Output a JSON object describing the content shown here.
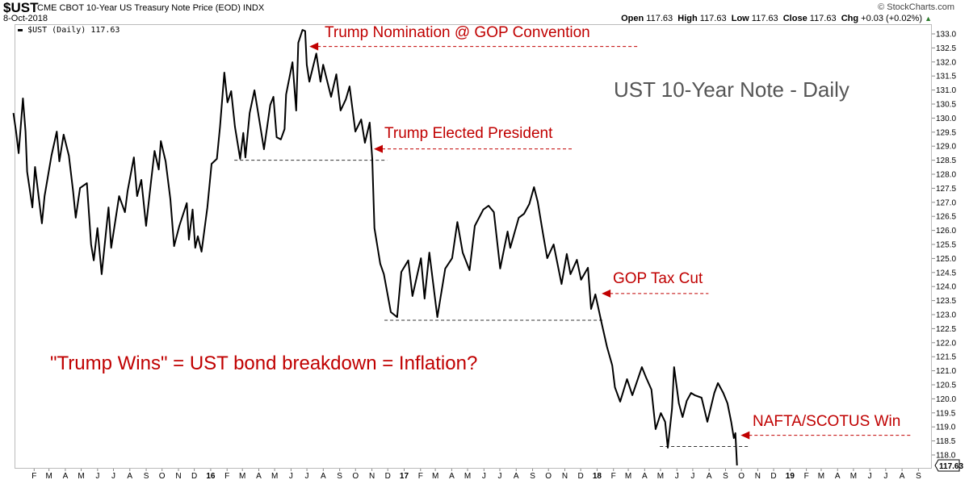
{
  "header": {
    "symbol": "$UST",
    "name": "CME CBOT 10-Year US Treasury Note Price (EOD)  INDX",
    "date": "8-Oct-2018",
    "brand": "© StockCharts.com",
    "open_label": "Open",
    "open": "117.63",
    "high_label": "High",
    "high": "117.63",
    "low_label": "Low",
    "low": "117.63",
    "close_label": "Close",
    "close": "117.63",
    "chg_label": "Chg",
    "chg": "+0.03 (+0.02%)",
    "chg_icon": "triangle-up-icon"
  },
  "legend": "$UST (Daily) 117.63",
  "last_price_tag": "117.63",
  "colors": {
    "line": "#000000",
    "annotation": "#c00000",
    "title": "#555555",
    "grid": "#bbbbbb"
  },
  "chart_data": {
    "type": "line",
    "title": "UST 10-Year Note - Daily",
    "xlim": [
      "2015-01-01",
      "2019-10-10"
    ],
    "ylim": [
      117.5,
      133.4
    ],
    "yticks": [
      "133.0",
      "132.5",
      "132.0",
      "131.5",
      "131.0",
      "130.5",
      "130.0",
      "129.5",
      "129.0",
      "128.5",
      "128.0",
      "127.5",
      "127.0",
      "126.5",
      "126.0",
      "125.5",
      "125.0",
      "124.5",
      "124.0",
      "123.5",
      "123.0",
      "122.5",
      "122.0",
      "121.5",
      "121.0",
      "120.5",
      "120.0",
      "119.5",
      "119.0",
      "118.5",
      "118.0"
    ],
    "xticks": [
      "F",
      "M",
      "A",
      "M",
      "J",
      "J",
      "A",
      "S",
      "O",
      "N",
      "D",
      "16",
      "F",
      "M",
      "A",
      "M",
      "J",
      "J",
      "A",
      "S",
      "O",
      "N",
      "D",
      "17",
      "F",
      "M",
      "A",
      "M",
      "J",
      "J",
      "A",
      "S",
      "O",
      "N",
      "D",
      "18",
      "F",
      "M",
      "A",
      "M",
      "J",
      "J",
      "A",
      "S",
      "O",
      "N",
      "D",
      "19",
      "F",
      "M",
      "A",
      "M",
      "J",
      "J",
      "A",
      "S"
    ],
    "grid": false,
    "series": [
      {
        "name": "$UST (Daily)",
        "points": [
          [
            "2015-01-08",
            130.18
          ],
          [
            "2015-01-13",
            129.52
          ],
          [
            "2015-01-18",
            128.75
          ],
          [
            "2015-01-26",
            130.7
          ],
          [
            "2015-01-31",
            129.52
          ],
          [
            "2015-02-03",
            128.09
          ],
          [
            "2015-02-13",
            126.82
          ],
          [
            "2015-02-18",
            128.26
          ],
          [
            "2015-03-03",
            126.25
          ],
          [
            "2015-03-08",
            127.22
          ],
          [
            "2015-03-21",
            128.66
          ],
          [
            "2015-03-31",
            129.52
          ],
          [
            "2015-04-05",
            128.46
          ],
          [
            "2015-04-13",
            129.41
          ],
          [
            "2015-04-23",
            128.66
          ],
          [
            "2015-05-01",
            127.4
          ],
          [
            "2015-05-06",
            126.45
          ],
          [
            "2015-05-14",
            127.51
          ],
          [
            "2015-05-27",
            127.68
          ],
          [
            "2015-06-04",
            125.5
          ],
          [
            "2015-06-09",
            124.93
          ],
          [
            "2015-06-16",
            126.08
          ],
          [
            "2015-06-24",
            124.44
          ],
          [
            "2015-07-07",
            126.82
          ],
          [
            "2015-07-12",
            125.38
          ],
          [
            "2015-07-27",
            127.22
          ],
          [
            "2015-08-07",
            126.65
          ],
          [
            "2015-08-12",
            127.4
          ],
          [
            "2015-08-24",
            128.6
          ],
          [
            "2015-08-30",
            127.22
          ],
          [
            "2015-09-07",
            127.8
          ],
          [
            "2015-09-16",
            126.16
          ],
          [
            "2015-09-25",
            127.68
          ],
          [
            "2015-10-02",
            128.83
          ],
          [
            "2015-10-10",
            128.17
          ],
          [
            "2015-10-14",
            129.18
          ],
          [
            "2015-10-23",
            128.46
          ],
          [
            "2015-11-01",
            127.11
          ],
          [
            "2015-11-08",
            125.44
          ],
          [
            "2015-11-18",
            126.16
          ],
          [
            "2015-12-02",
            126.97
          ],
          [
            "2015-12-06",
            125.67
          ],
          [
            "2015-12-13",
            126.74
          ],
          [
            "2015-12-18",
            125.38
          ],
          [
            "2015-12-23",
            125.79
          ],
          [
            "2015-12-30",
            125.24
          ],
          [
            "2016-01-10",
            126.82
          ],
          [
            "2016-01-18",
            128.37
          ],
          [
            "2016-01-28",
            128.55
          ],
          [
            "2016-02-03",
            129.7
          ],
          [
            "2016-02-11",
            131.62
          ],
          [
            "2016-02-17",
            130.56
          ],
          [
            "2016-02-24",
            130.96
          ],
          [
            "2016-03-02",
            129.7
          ],
          [
            "2016-03-12",
            128.55
          ],
          [
            "2016-03-18",
            129.47
          ],
          [
            "2016-03-22",
            128.6
          ],
          [
            "2016-03-30",
            130.18
          ],
          [
            "2016-04-08",
            130.99
          ],
          [
            "2016-04-15",
            130.18
          ],
          [
            "2016-04-26",
            128.89
          ],
          [
            "2016-05-08",
            130.47
          ],
          [
            "2016-05-14",
            130.76
          ],
          [
            "2016-05-20",
            129.32
          ],
          [
            "2016-05-28",
            129.24
          ],
          [
            "2016-06-04",
            129.61
          ],
          [
            "2016-06-07",
            130.84
          ],
          [
            "2016-06-19",
            131.99
          ],
          [
            "2016-06-26",
            130.27
          ],
          [
            "2016-06-30",
            132.68
          ],
          [
            "2016-07-08",
            133.14
          ],
          [
            "2016-07-13",
            133.1
          ],
          [
            "2016-07-16",
            131.9
          ],
          [
            "2016-07-21",
            131.3
          ],
          [
            "2016-08-03",
            132.3
          ],
          [
            "2016-08-11",
            131.3
          ],
          [
            "2016-08-16",
            131.9
          ],
          [
            "2016-08-31",
            130.76
          ],
          [
            "2016-09-10",
            131.56
          ],
          [
            "2016-09-18",
            130.27
          ],
          [
            "2016-09-28",
            130.67
          ],
          [
            "2016-10-05",
            131.13
          ],
          [
            "2016-10-16",
            129.52
          ],
          [
            "2016-10-27",
            129.95
          ],
          [
            "2016-11-03",
            129.12
          ],
          [
            "2016-11-12",
            129.84
          ],
          [
            "2016-11-17",
            128.55
          ],
          [
            "2016-11-21",
            126.08
          ],
          [
            "2016-12-02",
            124.81
          ],
          [
            "2016-12-09",
            124.44
          ],
          [
            "2016-12-22",
            123.09
          ],
          [
            "2017-01-03",
            122.91
          ],
          [
            "2017-01-11",
            124.52
          ],
          [
            "2017-01-24",
            124.93
          ],
          [
            "2017-02-01",
            123.66
          ],
          [
            "2017-02-17",
            125.01
          ],
          [
            "2017-02-24",
            123.57
          ],
          [
            "2017-03-05",
            125.21
          ],
          [
            "2017-03-20",
            122.91
          ],
          [
            "2017-04-04",
            124.64
          ],
          [
            "2017-04-17",
            125.01
          ],
          [
            "2017-04-27",
            126.3
          ],
          [
            "2017-05-07",
            125.21
          ],
          [
            "2017-05-20",
            124.58
          ],
          [
            "2017-05-30",
            126.16
          ],
          [
            "2017-06-15",
            126.74
          ],
          [
            "2017-06-25",
            126.88
          ],
          [
            "2017-07-05",
            126.65
          ],
          [
            "2017-07-17",
            124.64
          ],
          [
            "2017-07-31",
            125.96
          ],
          [
            "2017-08-05",
            125.38
          ],
          [
            "2017-08-21",
            126.45
          ],
          [
            "2017-08-31",
            126.59
          ],
          [
            "2017-09-10",
            126.94
          ],
          [
            "2017-09-19",
            127.54
          ],
          [
            "2017-09-26",
            127.02
          ],
          [
            "2017-10-06",
            125.87
          ],
          [
            "2017-10-14",
            125.01
          ],
          [
            "2017-10-26",
            125.5
          ],
          [
            "2017-11-10",
            124.09
          ],
          [
            "2017-11-20",
            125.16
          ],
          [
            "2017-11-27",
            124.44
          ],
          [
            "2017-12-09",
            124.95
          ],
          [
            "2017-12-17",
            124.24
          ],
          [
            "2017-12-30",
            124.67
          ],
          [
            "2018-01-05",
            123.2
          ],
          [
            "2018-01-13",
            123.72
          ],
          [
            "2018-01-24",
            122.77
          ],
          [
            "2018-02-04",
            121.85
          ],
          [
            "2018-02-14",
            121.19
          ],
          [
            "2018-02-19",
            120.41
          ],
          [
            "2018-03-01",
            119.9
          ],
          [
            "2018-03-14",
            120.7
          ],
          [
            "2018-03-24",
            120.13
          ],
          [
            "2018-04-11",
            121.13
          ],
          [
            "2018-04-19",
            120.76
          ],
          [
            "2018-04-29",
            120.33
          ],
          [
            "2018-05-07",
            118.92
          ],
          [
            "2018-05-17",
            119.49
          ],
          [
            "2018-05-25",
            119.18
          ],
          [
            "2018-05-30",
            118.26
          ],
          [
            "2018-06-07",
            119.64
          ],
          [
            "2018-06-11",
            121.13
          ],
          [
            "2018-06-20",
            119.84
          ],
          [
            "2018-06-27",
            119.35
          ],
          [
            "2018-07-05",
            119.93
          ],
          [
            "2018-07-13",
            120.21
          ],
          [
            "2018-07-20",
            120.13
          ],
          [
            "2018-08-02",
            120.04
          ],
          [
            "2018-08-13",
            119.18
          ],
          [
            "2018-08-26",
            120.21
          ],
          [
            "2018-09-02",
            120.56
          ],
          [
            "2018-09-12",
            120.21
          ],
          [
            "2018-09-20",
            119.84
          ],
          [
            "2018-09-27",
            119.18
          ],
          [
            "2018-10-02",
            118.6
          ],
          [
            "2018-10-05",
            118.78
          ],
          [
            "2018-10-08",
            117.63
          ]
        ]
      }
    ],
    "support_levels": [
      {
        "value": 128.5,
        "from": "2016-03-01",
        "to": "2016-12-15"
      },
      {
        "value": 122.8,
        "from": "2016-12-10",
        "to": "2018-01-30"
      },
      {
        "value": 118.3,
        "from": "2018-05-15",
        "to": "2018-10-30"
      }
    ],
    "annotations": [
      {
        "text": "Trump Nomination @ GOP Convention",
        "date": "2016-07-21",
        "value": 132.55,
        "line_to": "2018-04-05"
      },
      {
        "text": "Trump Elected President",
        "date": "2016-11-20",
        "value": 128.9,
        "line_to": "2017-12-01"
      },
      {
        "text": "GOP Tax Cut",
        "date": "2018-01-25",
        "value": 123.75,
        "line_to": "2018-08-15"
      },
      {
        "text": "NAFTA/SCOTUS Win",
        "date": "2018-10-15",
        "value": 118.7,
        "line_to": "2019-09-01"
      }
    ],
    "commentary": "\"Trump Wins\" = UST bond breakdown = Inflation?"
  }
}
